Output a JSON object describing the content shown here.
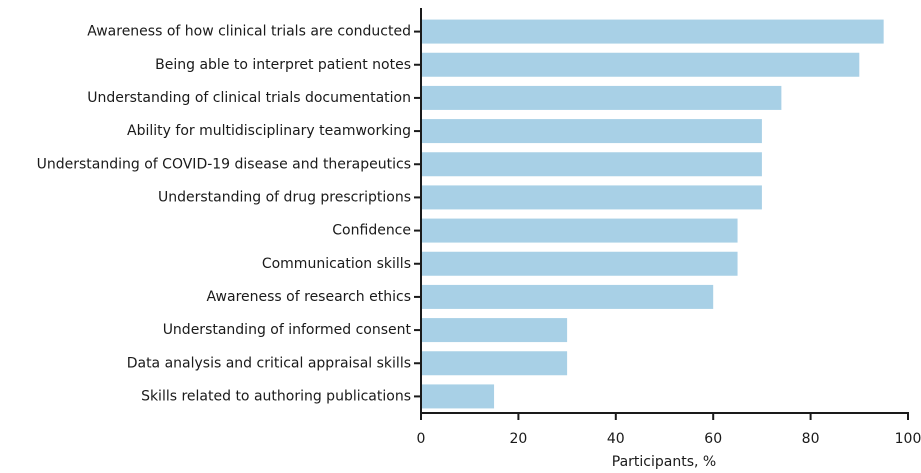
{
  "chart_data": {
    "type": "bar",
    "orientation": "horizontal",
    "x_label": "Participants, %",
    "categories": [
      "Awareness of how clinical trials are conducted",
      "Being able to interpret patient notes",
      "Understanding of clinical trials documentation",
      "Ability for multidisciplinary teamworking",
      "Understanding of COVID-19 disease and therapeutics",
      "Understanding of drug prescriptions",
      "Confidence",
      "Communication skills",
      "Awareness of research ethics",
      "Understanding of informed consent",
      "Data analysis and critical appraisal skills",
      "Skills related to authoring publications"
    ],
    "values": [
      95,
      90,
      74,
      70,
      70,
      70,
      65,
      65,
      60,
      30,
      30,
      15
    ],
    "color": "#a8d0e6",
    "xlim": [
      0,
      100
    ],
    "xticks": [
      0,
      20,
      40,
      60,
      80,
      100
    ],
    "grid": false
  }
}
